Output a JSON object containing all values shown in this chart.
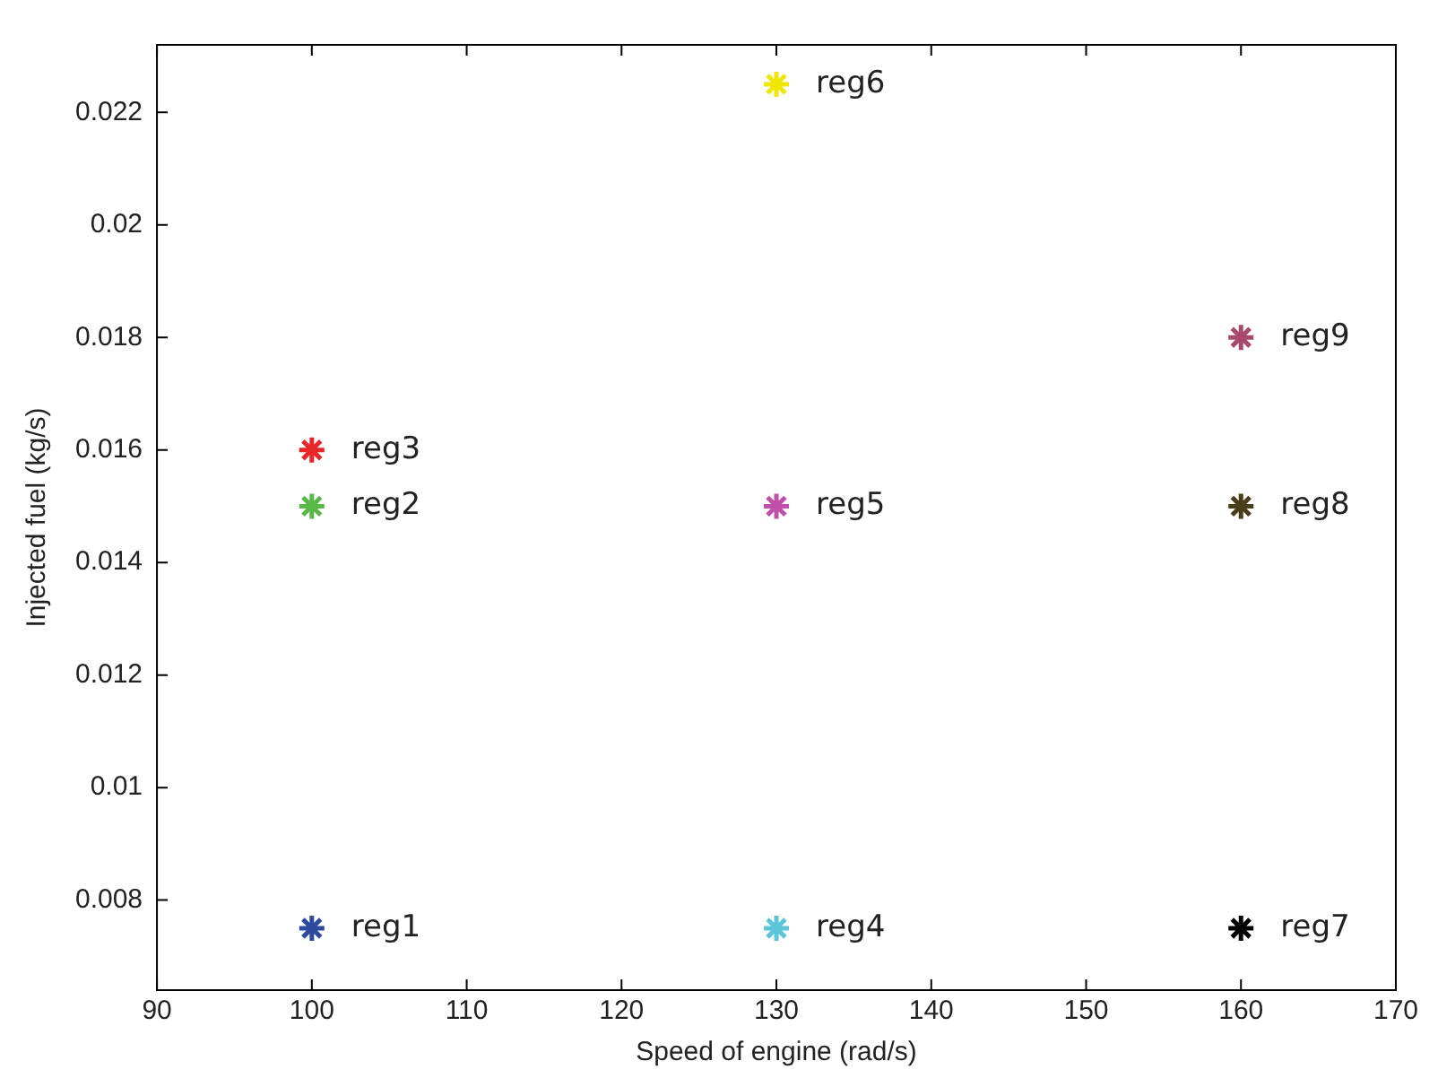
{
  "chart_data": {
    "type": "scatter",
    "xlabel": "Speed of engine (rad/s)",
    "ylabel": "Injected fuel (kg/s)",
    "xlim": [
      90,
      170
    ],
    "xticks": [
      90,
      100,
      110,
      120,
      130,
      140,
      150,
      160,
      170
    ],
    "ylim": [
      0.0064,
      0.0232
    ],
    "yticks": [
      0.008,
      0.01,
      0.012,
      0.014,
      0.016,
      0.018,
      0.02,
      0.022
    ],
    "grid": false,
    "legend": false,
    "marker": "cross",
    "series": [
      {
        "name": "reg1",
        "color": "#2e4a9e",
        "x": [
          100
        ],
        "values": [
          0.0075
        ]
      },
      {
        "name": "reg2",
        "color": "#5ab849",
        "x": [
          100
        ],
        "values": [
          0.015
        ]
      },
      {
        "name": "reg3",
        "color": "#e8262a",
        "x": [
          100
        ],
        "values": [
          0.016
        ]
      },
      {
        "name": "reg4",
        "color": "#5bc5d9",
        "x": [
          130
        ],
        "values": [
          0.0075
        ]
      },
      {
        "name": "reg5",
        "color": "#c04faa",
        "x": [
          130
        ],
        "values": [
          0.015
        ]
      },
      {
        "name": "reg6",
        "color": "#f0e600",
        "x": [
          130
        ],
        "values": [
          0.0225
        ]
      },
      {
        "name": "reg7",
        "color": "#000000",
        "x": [
          160
        ],
        "values": [
          0.0075
        ]
      },
      {
        "name": "reg8",
        "color": "#4a3d1a",
        "x": [
          160
        ],
        "values": [
          0.015
        ]
      },
      {
        "name": "reg9",
        "color": "#a84a6e",
        "x": [
          160
        ],
        "values": [
          0.018
        ]
      }
    ]
  }
}
